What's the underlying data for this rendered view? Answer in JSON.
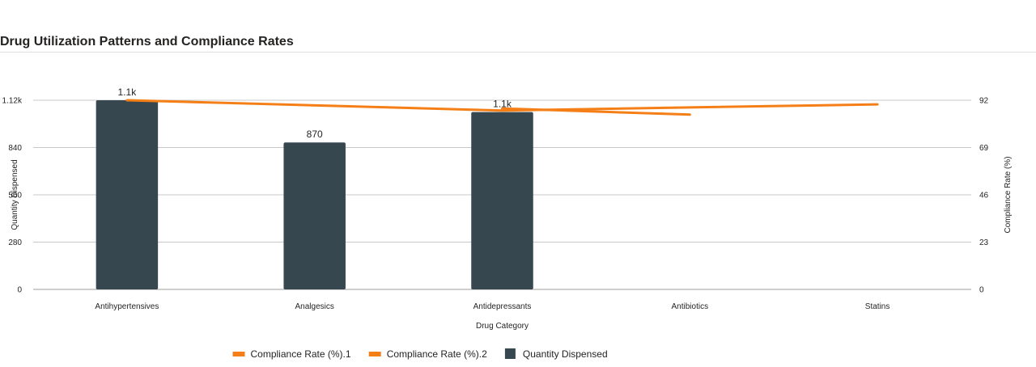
{
  "page": {
    "title": "Drug Utilization Patterns and Compliance Rates"
  },
  "colors": {
    "bar": "#37474f",
    "line": "#f57f17",
    "grid": "#c8c8c8",
    "axis": "#9e9e9e"
  },
  "chart_data": {
    "type": "bar",
    "title": "Drug Utilization Patterns and Compliance Rates",
    "xlabel": "Drug Category",
    "ylabel": "Quantity Dispensed",
    "y2label": "Compliance Rate (%)",
    "categories": [
      "Antihypertensives",
      "Analgesics",
      "Antidepressants",
      "Antibiotics",
      "Statins"
    ],
    "ylim": [
      0,
      1120
    ],
    "y2lim": [
      0,
      92
    ],
    "yticks": [
      "0",
      "280",
      "560",
      "840",
      "1.12k"
    ],
    "y2ticks": [
      "0",
      "23",
      "46",
      "69",
      "92"
    ],
    "grid": true,
    "legend_position": "bottom",
    "series": [
      {
        "name": "Quantity Dispensed",
        "kind": "bar",
        "axis": "left",
        "values": [
          1120,
          870,
          1050,
          null,
          null
        ],
        "labels": [
          "1.1k",
          "870",
          "1.1k",
          "",
          ""
        ]
      },
      {
        "name": "Compliance Rate (%).1",
        "kind": "line",
        "axis": "right",
        "values": [
          92,
          null,
          87,
          null,
          90
        ]
      },
      {
        "name": "Compliance Rate (%).2",
        "kind": "line",
        "axis": "right",
        "values": [
          null,
          null,
          88,
          85,
          null
        ]
      }
    ],
    "legend": [
      "Compliance Rate (%).1",
      "Compliance Rate (%).2",
      "Quantity Dispensed"
    ]
  }
}
